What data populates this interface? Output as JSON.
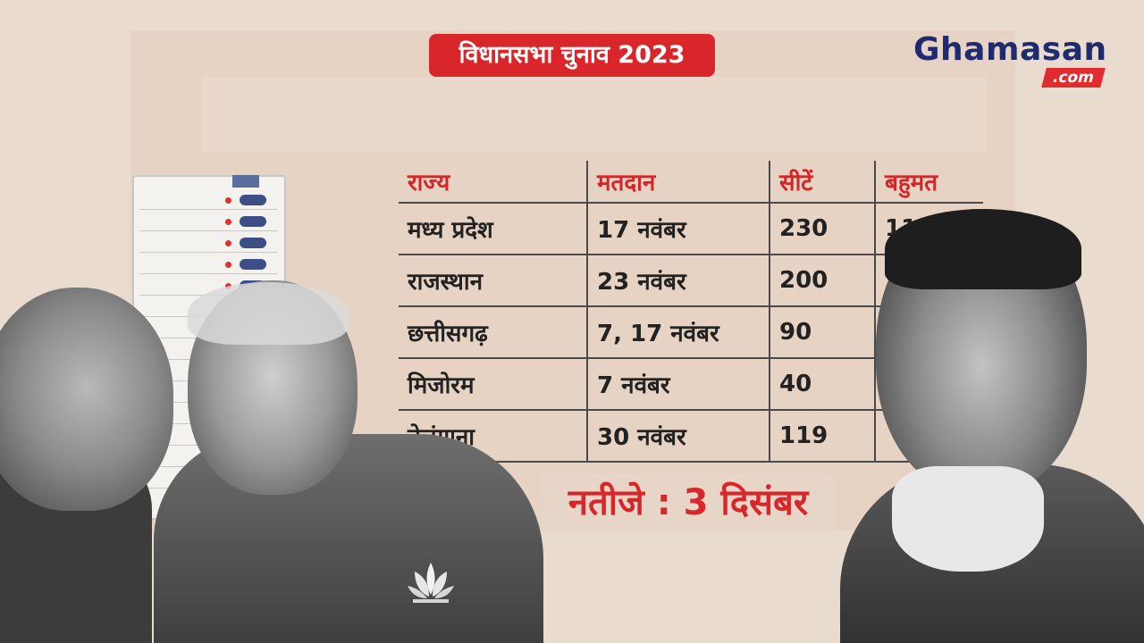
{
  "title": "विधानसभा चुनाव 2023",
  "logo": {
    "name": "Ghamasan",
    "suffix": ".com"
  },
  "table": {
    "headers": [
      "राज्य",
      "मतदान",
      "सीटें",
      "बहुमत"
    ],
    "rows": [
      [
        "मध्य प्रदेश",
        "17 नवंबर",
        "230",
        "11"
      ],
      [
        "राजस्थान",
        "23 नवंबर",
        "200",
        ""
      ],
      [
        "छत्तीसगढ़",
        "7, 17 नवंबर",
        "90",
        ""
      ],
      [
        "मिजोरम",
        "7 नवंबर",
        "40",
        ""
      ],
      [
        "तेलंगाना",
        "30 नवंबर",
        "119",
        ""
      ]
    ]
  },
  "result": "नतीजे : 3 दिसंबर",
  "colors": {
    "accent": "#d8262b",
    "brand": "#1f2b6e",
    "background": "#eadbcf"
  }
}
